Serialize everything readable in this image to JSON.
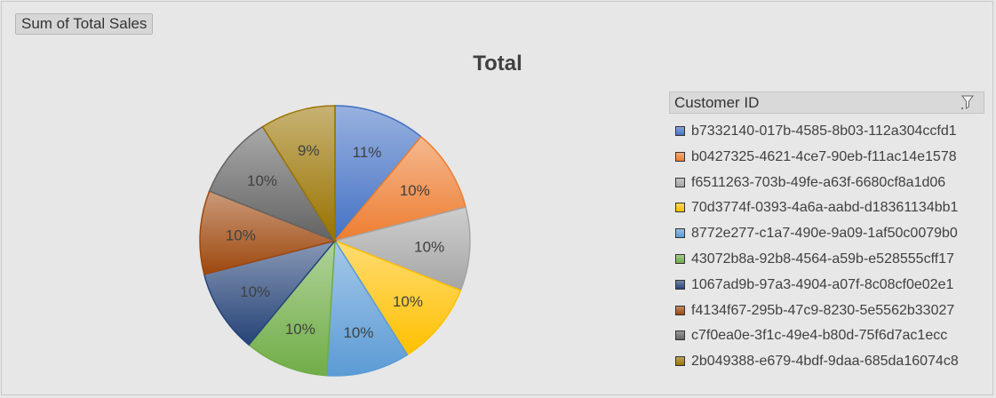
{
  "field_button": {
    "label": "Sum of Total Sales"
  },
  "legend": {
    "header": "Customer ID",
    "filter_icon": "funnel-filter-icon"
  },
  "chart_data": {
    "type": "pie",
    "title": "Total",
    "categories": [
      "b7332140-017b-4585-8b03-112a304ccfd1",
      "b0427325-4621-4ce7-90eb-f11ac14e1578",
      "f6511263-703b-49fe-a63f-6680cf8a1d06",
      "70d3774f-0393-4a6a-aabd-d18361134bb1",
      "8772e277-c1a7-490e-9a09-1af50c0079b0",
      "43072b8a-92b8-4564-a59b-e528555cff17",
      "1067ad9b-97a3-4904-a07f-8c08cf0e02e1",
      "f4134f67-295b-47c9-8230-5e5562b33027",
      "c7f0ea0e-3f1c-49e4-b80d-75f6d7ac1ecc",
      "2b049388-e679-4bdf-9daa-685da16074c8"
    ],
    "values": [
      11,
      10,
      10,
      10,
      10,
      10,
      10,
      10,
      10,
      9
    ],
    "labels": [
      "11%",
      "10%",
      "10%",
      "10%",
      "10%",
      "10%",
      "10%",
      "10%",
      "10%",
      "9%"
    ],
    "colors": [
      "#4472c4",
      "#ed7d31",
      "#a5a5a5",
      "#ffc000",
      "#5b9bd5",
      "#70ad47",
      "#264478",
      "#9e480e",
      "#636363",
      "#997300"
    ],
    "legend_position": "right"
  }
}
